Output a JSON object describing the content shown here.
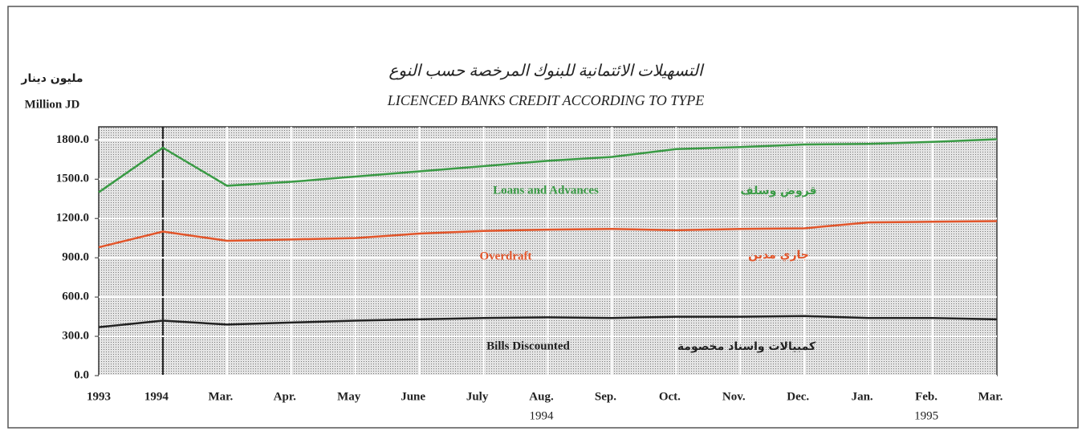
{
  "chart_data": {
    "type": "line",
    "title": "LICENCED BANKS CREDIT ACCORDING TO TYPE",
    "title_ar": "التسهيلات الائتمانية للبنوك المرخصة حسب النوع",
    "y_label": "Million JD",
    "y_label_ar": "مليون دينار",
    "categories": [
      "1993",
      "1994",
      "Mar.",
      "Apr.",
      "May",
      "June",
      "July",
      "Aug.",
      "Sep.",
      "Oct.",
      "Nov.",
      "Dec.",
      "Jan.",
      "Feb.",
      "Mar."
    ],
    "x_sublabels": [
      null,
      null,
      null,
      null,
      null,
      null,
      null,
      "1994",
      null,
      null,
      null,
      null,
      null,
      "1995",
      null
    ],
    "series": [
      {
        "name": "Loans and Advances",
        "name_ar": "قروض وسلف",
        "color": "#3a9b45",
        "values": [
          1400,
          1740,
          1450,
          1480,
          1520,
          1560,
          1600,
          1640,
          1670,
          1730,
          1745,
          1765,
          1770,
          1785,
          1805
        ]
      },
      {
        "name": "Overdraft",
        "name_ar": "جاري مدين",
        "color": "#e2552a",
        "values": [
          980,
          1100,
          1030,
          1040,
          1050,
          1085,
          1105,
          1115,
          1120,
          1110,
          1120,
          1125,
          1170,
          1175,
          1180
        ]
      },
      {
        "name": "Bills Discounted",
        "name_ar": "كمبيالات واسناد مخصومة",
        "color": "#222222",
        "values": [
          370,
          420,
          390,
          405,
          420,
          430,
          440,
          445,
          440,
          450,
          450,
          455,
          440,
          440,
          430
        ]
      }
    ],
    "ylim": [
      0,
      1900
    ],
    "yticks": [
      {
        "value": 0,
        "label": "0.0"
      },
      {
        "value": 300,
        "label": "300.0"
      },
      {
        "value": 600,
        "label": "600.0"
      },
      {
        "value": 900,
        "label": "900.0"
      },
      {
        "value": 1200,
        "label": "1200.0"
      },
      {
        "value": 1500,
        "label": "1500.0"
      },
      {
        "value": 1800,
        "label": "1800.0"
      }
    ],
    "grid": true
  }
}
